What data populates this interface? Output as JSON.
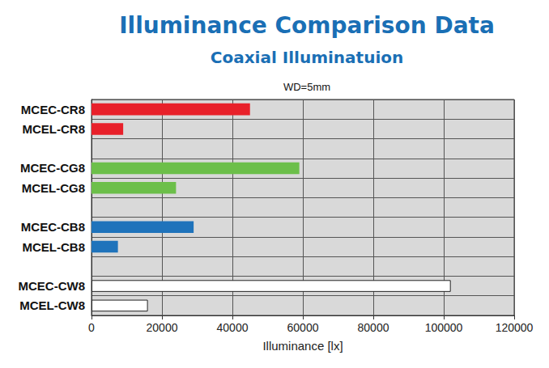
{
  "chart_data": {
    "type": "bar",
    "orientation": "horizontal",
    "title": "Illuminance Comparison Data",
    "subtitle": "Coaxial Illuminatuion",
    "annotation": "WD=5mm",
    "xlabel": "Illuminance [lx]",
    "categories": [
      "MCEC-CR8",
      "MCEL-CR8",
      null,
      "MCEC-CG8",
      "MCEL-CG8",
      null,
      "MCEC-CB8",
      "MCEL-CB8",
      null,
      "MCEC-CW8",
      "MCEL-CW8"
    ],
    "values": [
      45000,
      9000,
      null,
      59000,
      24000,
      null,
      29000,
      7500,
      null,
      102000,
      16000
    ],
    "colors": [
      "#e8202a",
      "#e8202a",
      null,
      "#6cbf4a",
      "#6cbf4a",
      null,
      "#1f73bb",
      "#1f73bb",
      null,
      "#ffffff",
      "#ffffff"
    ],
    "xlim": [
      0,
      120000
    ],
    "xticks": [
      0,
      20000,
      40000,
      60000,
      80000,
      100000,
      120000
    ],
    "grid": true
  }
}
